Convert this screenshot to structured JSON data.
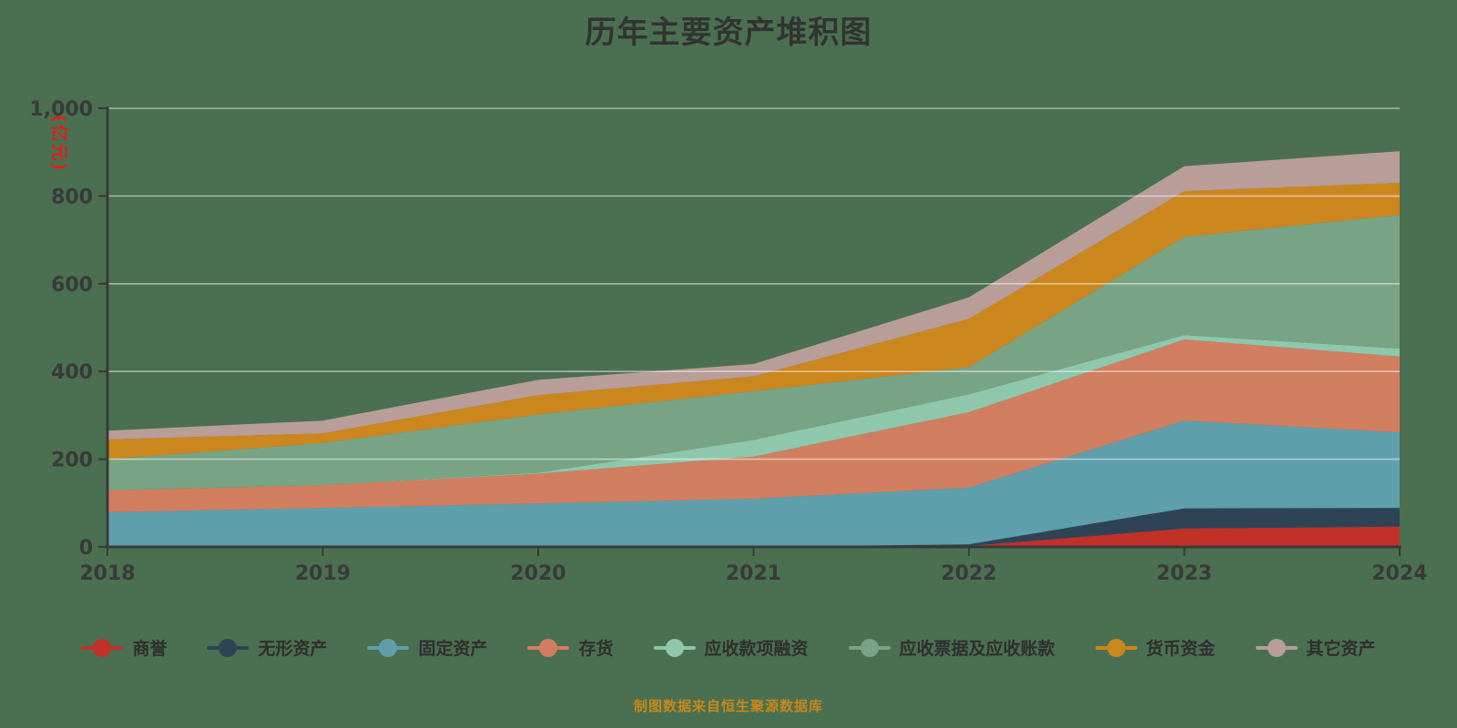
{
  "title": "历年主要资产堆积图",
  "footer": "制图数据来自恒生聚源数据库",
  "y_axis": {
    "unit_label": "(亿元)",
    "tick_labels": [
      "0",
      "200",
      "400",
      "600",
      "800",
      "1,000"
    ],
    "tick_values": [
      0,
      200,
      400,
      600,
      800,
      1000
    ]
  },
  "x_axis": {
    "tick_labels": [
      "2018",
      "2019",
      "2020",
      "2021",
      "2022",
      "2023",
      "2024"
    ]
  },
  "colors": {
    "background": "#4a7051",
    "axis": "#3a3a3a",
    "grid": "rgba(255,255,255,0.5)",
    "title_text": "#333333",
    "unit_label_text": "#dd1f1a",
    "footer_text": "#c8871b"
  },
  "chart_data": {
    "type": "area",
    "stacked": true,
    "title": "历年主要资产堆积图",
    "x": [
      2018,
      2019,
      2020,
      2021,
      2022,
      2023,
      2024
    ],
    "ylim": [
      0,
      1000
    ],
    "grid": true,
    "legend_position": "bottom",
    "series": [
      {
        "name": "商誉",
        "color": "#c23128",
        "values": [
          0,
          0,
          0,
          0,
          2,
          42,
          46
        ]
      },
      {
        "name": "无形资产",
        "color": "#2e4456",
        "values": [
          0,
          0,
          0,
          0,
          4,
          46,
          43
        ]
      },
      {
        "name": "固定资产",
        "color": "#5f9fab",
        "values": [
          79,
          89,
          99,
          110,
          129,
          200,
          172
        ]
      },
      {
        "name": "存货",
        "color": "#d17e60",
        "values": [
          50,
          52,
          68,
          96,
          172,
          185,
          173
        ]
      },
      {
        "name": "应收款项融资",
        "color": "#8ec7ac",
        "values": [
          0,
          0,
          2,
          38,
          41,
          10,
          18
        ]
      },
      {
        "name": "应收票据及应收账款",
        "color": "#78a384",
        "values": [
          71,
          96,
          133,
          111,
          62,
          224,
          305
        ]
      },
      {
        "name": "货币资金",
        "color": "#cc861e",
        "values": [
          45,
          22,
          44,
          34,
          110,
          104,
          73
        ]
      },
      {
        "name": "其它资产",
        "color": "#b89d98",
        "values": [
          20,
          29,
          35,
          28,
          49,
          57,
          72
        ]
      }
    ]
  }
}
